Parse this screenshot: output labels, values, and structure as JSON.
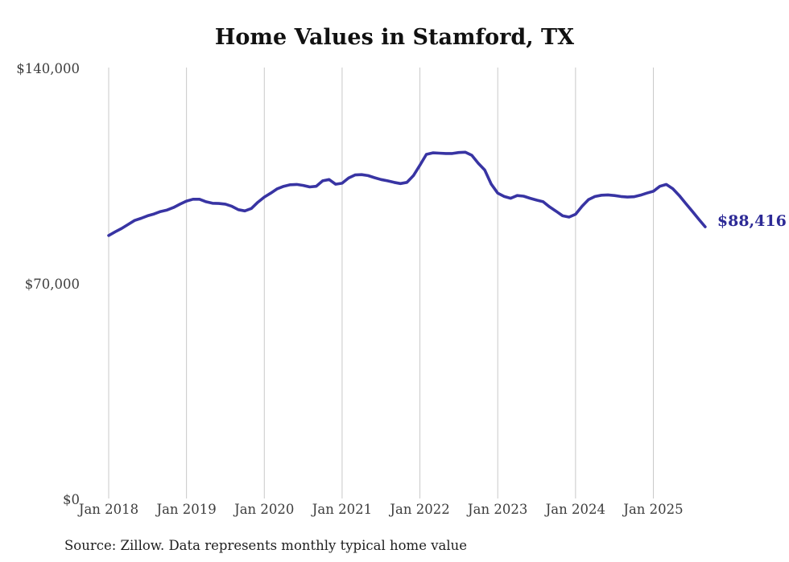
{
  "title": "Home Values in Stamford, TX",
  "source_note": "Source: Zillow. Data represents monthly typical home value",
  "end_label": "$88,416",
  "colors": {
    "line": "#3834a3",
    "end_label": "#2d2a96",
    "grid": "#c9c9c9",
    "axis_text": "#3d3d3d",
    "title_text": "#111111",
    "background": "#ffffff"
  },
  "chart_data": {
    "type": "line",
    "title": "Home Values in Stamford, TX",
    "xlabel": "",
    "ylabel": "",
    "ylim": [
      0,
      140000
    ],
    "y_tick_labels": [
      "$0",
      "$70,000",
      "$140,000"
    ],
    "x_tick_labels": [
      "Jan 2018",
      "Jan 2019",
      "Jan 2020",
      "Jan 2021",
      "Jan 2022",
      "Jan 2023",
      "Jan 2024",
      "Jan 2025"
    ],
    "grid": "vertical-only",
    "legend": "none",
    "end_value": 88416,
    "series": [
      {
        "name": "Typical home value",
        "frequency": "monthly",
        "x_start": "2018-01",
        "x_end": "2025-09",
        "values": [
          85600,
          86800,
          87900,
          89200,
          90500,
          91200,
          92000,
          92600,
          93400,
          93900,
          94700,
          95800,
          96800,
          97400,
          97400,
          96600,
          96100,
          96000,
          95800,
          95100,
          94000,
          93600,
          94400,
          96400,
          98100,
          99400,
          100800,
          101600,
          102100,
          102200,
          101900,
          101400,
          101600,
          103400,
          103800,
          102300,
          102600,
          104300,
          105300,
          105400,
          105100,
          104400,
          103800,
          103400,
          102900,
          102500,
          102900,
          105100,
          108500,
          112000,
          112500,
          112400,
          112300,
          112300,
          112600,
          112700,
          111700,
          109100,
          106900,
          102300,
          99400,
          98300,
          97700,
          98600,
          98400,
          97700,
          97100,
          96600,
          94900,
          93500,
          92000,
          91600,
          92500,
          95100,
          97300,
          98300,
          98700,
          98800,
          98600,
          98300,
          98100,
          98200,
          98700,
          99400,
          100000,
          101600,
          102200,
          100800,
          98600,
          96000,
          93500,
          90900,
          88416
        ]
      }
    ]
  }
}
